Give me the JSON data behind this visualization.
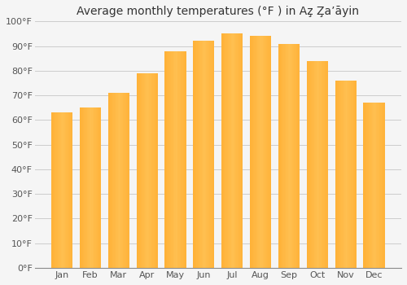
{
  "title": "Average monthly temperatures (°F ) in Az̧ Z̧aʼāyin",
  "months": [
    "Jan",
    "Feb",
    "Mar",
    "Apr",
    "May",
    "Jun",
    "Jul",
    "Aug",
    "Sep",
    "Oct",
    "Nov",
    "Dec"
  ],
  "values": [
    63,
    65,
    71,
    79,
    88,
    92,
    95,
    94,
    91,
    84,
    76,
    67
  ],
  "bar_color": "#FFA520",
  "bar_color_light": "#FFD070",
  "background_color": "#f5f5f5",
  "grid_color": "#cccccc",
  "ylim": [
    0,
    100
  ],
  "yticks": [
    0,
    10,
    20,
    30,
    40,
    50,
    60,
    70,
    80,
    90,
    100
  ],
  "ytick_labels": [
    "0°F",
    "10°F",
    "20°F",
    "30°F",
    "40°F",
    "50°F",
    "60°F",
    "70°F",
    "80°F",
    "90°F",
    "100°F"
  ],
  "title_fontsize": 10,
  "tick_fontsize": 8,
  "figsize": [
    5.0,
    3.5
  ],
  "dpi": 100
}
